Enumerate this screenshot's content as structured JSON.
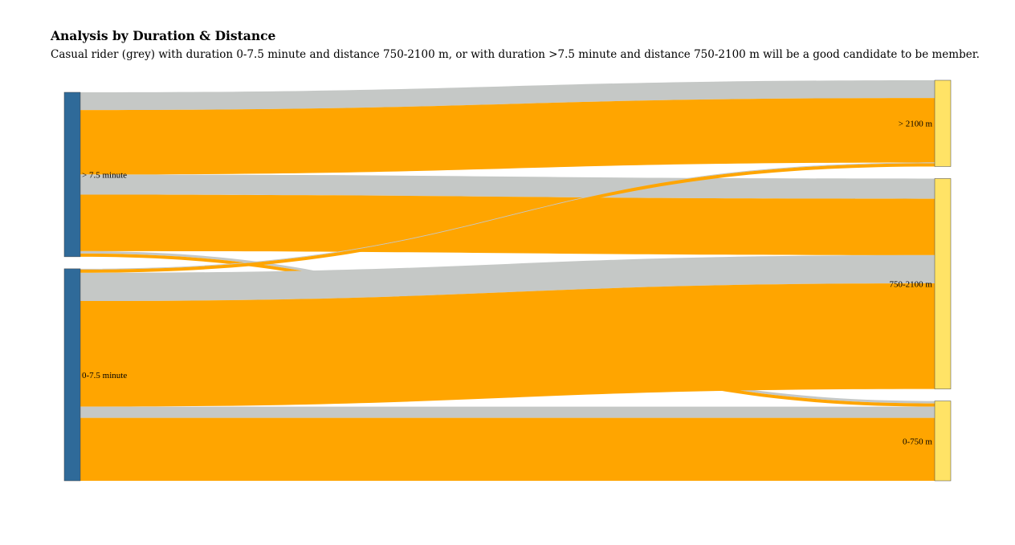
{
  "chart_data": {
    "type": "sankey",
    "title": "Analysis by Duration & Distance",
    "subtitle": "Casual rider (grey) with duration 0-7.5 minute and distance 750-2100 m, or with duration >7.5 minute and distance 750-2100 m will be a good candidate to be member.",
    "sources": [
      {
        "id": "long",
        "label": "> 7.5 minute",
        "color": "#2f6a99"
      },
      {
        "id": "short",
        "label": "0-7.5 minute",
        "color": "#2f6a99"
      }
    ],
    "targets": [
      {
        "id": "far",
        "label": "> 2100 m",
        "color": "#ffe366"
      },
      {
        "id": "mid",
        "label": "750-2100 m",
        "color": "#ffe366"
      },
      {
        "id": "near",
        "label": "0-750 m",
        "color": "#ffe366"
      }
    ],
    "rider_types": [
      {
        "name": "casual",
        "color": "#c5c8c6"
      },
      {
        "name": "member",
        "color": "#ffa500"
      }
    ],
    "flows": [
      {
        "source": "long",
        "target": "far",
        "rider": "casual",
        "value": 22
      },
      {
        "source": "long",
        "target": "far",
        "rider": "member",
        "value": 80
      },
      {
        "source": "long",
        "target": "mid",
        "rider": "casual",
        "value": 25
      },
      {
        "source": "long",
        "target": "mid",
        "rider": "member",
        "value": 70
      },
      {
        "source": "long",
        "target": "near",
        "rider": "casual",
        "value": 3
      },
      {
        "source": "long",
        "target": "near",
        "rider": "member",
        "value": 4
      },
      {
        "source": "short",
        "target": "far",
        "rider": "casual",
        "value": 1
      },
      {
        "source": "short",
        "target": "far",
        "rider": "member",
        "value": 4
      },
      {
        "source": "short",
        "target": "mid",
        "rider": "casual",
        "value": 35
      },
      {
        "source": "short",
        "target": "mid",
        "rider": "member",
        "value": 131
      },
      {
        "source": "short",
        "target": "near",
        "rider": "casual",
        "value": 14
      },
      {
        "source": "short",
        "target": "near",
        "rider": "member",
        "value": 78
      }
    ]
  }
}
